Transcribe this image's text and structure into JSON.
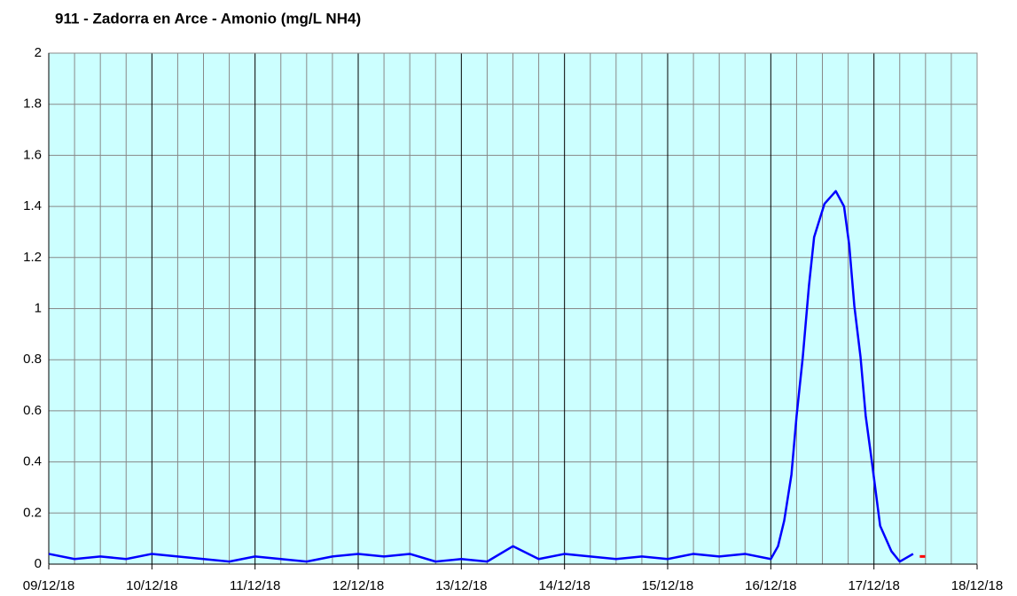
{
  "chart_data": {
    "type": "line",
    "title": "911 - Zadorra en Arce - Amonio (mg/L NH4)",
    "x": [
      0,
      0.25,
      0.5,
      0.75,
      1,
      1.25,
      1.5,
      1.75,
      2,
      2.25,
      2.5,
      2.75,
      3,
      3.25,
      3.5,
      3.75,
      4,
      4.25,
      4.5,
      4.75,
      5,
      5.25,
      5.5,
      5.75,
      6,
      6.25,
      6.5,
      6.75,
      7,
      7.07,
      7.13,
      7.2,
      7.25,
      7.31,
      7.37,
      7.42,
      7.52,
      7.63,
      7.71,
      7.76,
      7.81,
      7.87,
      7.92,
      7.98,
      8.06,
      8.17,
      8.25,
      8.38,
      8.47
    ],
    "series": [
      {
        "color": "#0000ff",
        "values": [
          0.04,
          0.02,
          0.03,
          0.02,
          0.04,
          0.03,
          0.02,
          0.01,
          0.03,
          0.02,
          0.01,
          0.03,
          0.04,
          0.03,
          0.04,
          0.01,
          0.02,
          0.01,
          0.07,
          0.02,
          0.04,
          0.03,
          0.02,
          0.03,
          0.02,
          0.04,
          0.03,
          0.04,
          0.02,
          0.07,
          0.17,
          0.35,
          0.58,
          0.81,
          1.09,
          1.28,
          1.41,
          1.46,
          1.4,
          1.25,
          1.01,
          0.81,
          0.58,
          0.4,
          0.15,
          0.05,
          0.01,
          0.04,
          null
        ]
      },
      {
        "color": "#ff0000",
        "values": [
          null,
          null,
          null,
          null,
          null,
          null,
          null,
          null,
          null,
          null,
          null,
          null,
          null,
          null,
          null,
          null,
          null,
          null,
          null,
          null,
          null,
          null,
          null,
          null,
          null,
          null,
          null,
          null,
          null,
          null,
          null,
          null,
          null,
          null,
          null,
          null,
          null,
          null,
          null,
          null,
          null,
          null,
          null,
          null,
          null,
          null,
          null,
          null,
          0.03
        ]
      }
    ],
    "xlim": [
      0,
      9
    ],
    "xticks": [
      {
        "value": 0,
        "label": "09/12/18"
      },
      {
        "value": 1,
        "label": "10/12/18"
      },
      {
        "value": 2,
        "label": "11/12/18"
      },
      {
        "value": 3,
        "label": "12/12/18"
      },
      {
        "value": 4,
        "label": "13/12/18"
      },
      {
        "value": 5,
        "label": "14/12/18"
      },
      {
        "value": 6,
        "label": "15/12/18"
      },
      {
        "value": 7,
        "label": "16/12/18"
      },
      {
        "value": 8,
        "label": "17/12/18"
      },
      {
        "value": 9,
        "label": "18/12/18"
      }
    ],
    "ylim": [
      0,
      2
    ],
    "yticks": [
      0,
      0.2,
      0.4,
      0.6,
      0.8,
      1,
      1.2,
      1.4,
      1.6,
      1.8,
      2
    ],
    "grid": true,
    "background": "#ccffff"
  }
}
